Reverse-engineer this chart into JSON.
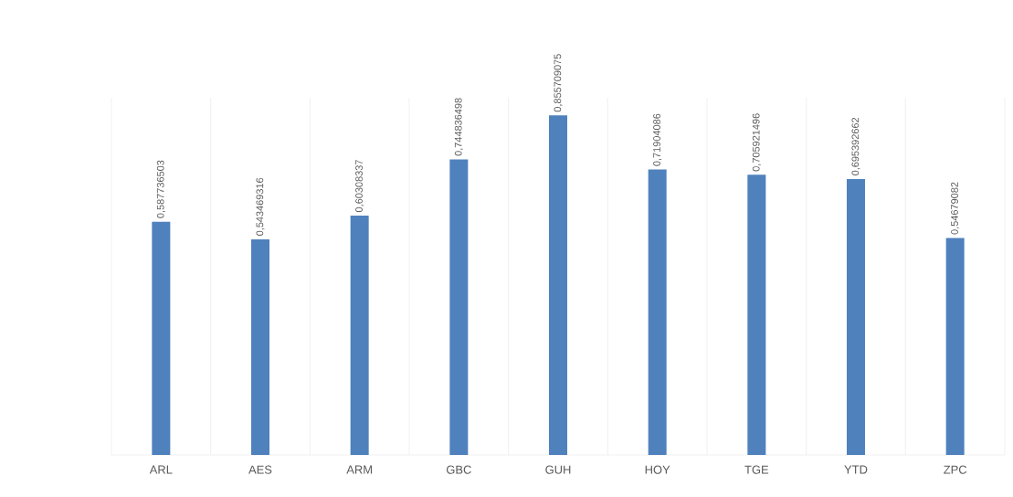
{
  "chart_data": {
    "type": "bar",
    "categories": [
      "ARL",
      "AES",
      "ARM",
      "GBC",
      "GUH",
      "HOY",
      "TGE",
      "YTD",
      "ZPC"
    ],
    "values": [
      0.587736503,
      0.543469316,
      0.60308337,
      0.744836498,
      0.855709075,
      0.71904086,
      0.705921496,
      0.695392662,
      0.54679082
    ],
    "value_labels": [
      "0,587736503",
      "0,543469316",
      "0,60308337",
      "0,744836498",
      "0,855709075",
      "0,71904086",
      "0,705921496",
      "0,695392662",
      "0,54679082"
    ],
    "color": "#4f81bd",
    "ylim": [
      0,
      0.9
    ],
    "grid": "x",
    "tick_labels": "x"
  }
}
